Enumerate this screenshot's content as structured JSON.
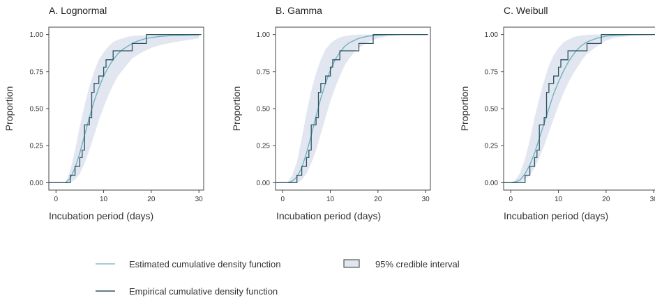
{
  "colors": {
    "band": "#e1e6f1",
    "estimated": "#6aaebb",
    "empirical": "#2b5560",
    "axis": "#444444"
  },
  "chart_data": [
    {
      "type": "line",
      "title": "A. Lognormal",
      "xlabel": "Incubation period (days)",
      "ylabel": "Proportion",
      "xlim": [
        -1.5,
        31
      ],
      "ylim": [
        -0.05,
        1.05
      ],
      "xticks": [
        0,
        10,
        20,
        30
      ],
      "yticks": [
        "0.00",
        "0.25",
        "0.50",
        "0.75",
        "1.00"
      ],
      "grid": false,
      "series": [
        {
          "name": "Estimated cumulative density function",
          "style": "line",
          "x": [
            -1.5,
            2,
            3,
            4,
            5,
            6,
            7,
            8,
            9,
            10,
            11,
            12,
            13,
            14,
            15,
            16,
            17,
            18,
            19,
            20,
            22,
            25,
            28,
            30
          ],
          "y": [
            0.0,
            0.0,
            0.03,
            0.1,
            0.2,
            0.32,
            0.44,
            0.55,
            0.64,
            0.72,
            0.78,
            0.83,
            0.87,
            0.9,
            0.92,
            0.94,
            0.955,
            0.965,
            0.975,
            0.98,
            0.988,
            0.994,
            0.997,
            0.998
          ]
        },
        {
          "name": "Empirical cumulative density function",
          "style": "step",
          "x": [
            -1.5,
            3,
            4,
            5,
            5.5,
            6,
            7,
            7.5,
            8,
            9,
            10,
            10.5,
            11,
            12,
            14,
            16,
            19,
            30.5
          ],
          "y": [
            0.0,
            0.05,
            0.11,
            0.17,
            0.22,
            0.39,
            0.44,
            0.61,
            0.67,
            0.72,
            0.78,
            0.83,
            0.83,
            0.89,
            0.89,
            0.94,
            1.0,
            1.0
          ]
        },
        {
          "name": "95% credible interval",
          "style": "band",
          "x": [
            2,
            3,
            4,
            5,
            6,
            7,
            8,
            9,
            10,
            11,
            12,
            13,
            14,
            15,
            16,
            18,
            20,
            22,
            25,
            28,
            30
          ],
          "lower": [
            0.0,
            0.0,
            0.02,
            0.06,
            0.13,
            0.22,
            0.32,
            0.42,
            0.51,
            0.59,
            0.66,
            0.72,
            0.76,
            0.8,
            0.84,
            0.88,
            0.91,
            0.93,
            0.95,
            0.965,
            0.975
          ],
          "upper": [
            0.0,
            0.08,
            0.22,
            0.38,
            0.52,
            0.65,
            0.75,
            0.83,
            0.88,
            0.92,
            0.95,
            0.965,
            0.975,
            0.985,
            0.99,
            0.995,
            0.998,
            1.0,
            1.0,
            1.0,
            1.0
          ]
        }
      ]
    },
    {
      "type": "line",
      "title": "B. Gamma",
      "xlabel": "Incubation period (days)",
      "ylabel": "Proportion",
      "xlim": [
        -1.5,
        31
      ],
      "ylim": [
        -0.05,
        1.05
      ],
      "xticks": [
        0,
        10,
        20,
        30
      ],
      "yticks": [
        "0.00",
        "0.25",
        "0.50",
        "0.75",
        "1.00"
      ],
      "grid": false,
      "series": [
        {
          "name": "Estimated cumulative density function",
          "style": "line",
          "x": [
            -1.5,
            1,
            2,
            3,
            4,
            5,
            6,
            7,
            8,
            9,
            10,
            11,
            12,
            13,
            14,
            15,
            16,
            18,
            20,
            22,
            25,
            30
          ],
          "y": [
            0.0,
            0.0,
            0.01,
            0.04,
            0.1,
            0.2,
            0.32,
            0.45,
            0.57,
            0.67,
            0.76,
            0.83,
            0.88,
            0.92,
            0.945,
            0.96,
            0.975,
            0.99,
            0.995,
            0.998,
            1.0,
            1.0
          ]
        },
        {
          "name": "Empirical cumulative density function",
          "style": "step",
          "x": [
            -1.5,
            3,
            4,
            5,
            5.5,
            6,
            7,
            7.5,
            8,
            9,
            10,
            10.5,
            11,
            12,
            14,
            16,
            19,
            30.5
          ],
          "y": [
            0.0,
            0.05,
            0.11,
            0.17,
            0.22,
            0.39,
            0.44,
            0.61,
            0.67,
            0.72,
            0.78,
            0.83,
            0.83,
            0.89,
            0.89,
            0.94,
            1.0,
            1.0
          ]
        },
        {
          "name": "95% credible interval",
          "style": "band",
          "x": [
            1,
            2,
            3,
            4,
            5,
            6,
            7,
            8,
            9,
            10,
            11,
            12,
            13,
            14,
            15,
            16,
            18,
            20,
            22,
            25,
            30
          ],
          "lower": [
            0.0,
            0.0,
            0.0,
            0.02,
            0.06,
            0.13,
            0.22,
            0.33,
            0.44,
            0.55,
            0.64,
            0.72,
            0.79,
            0.84,
            0.88,
            0.91,
            0.95,
            0.975,
            0.99,
            0.997,
            1.0
          ],
          "upper": [
            0.0,
            0.05,
            0.14,
            0.3,
            0.47,
            0.62,
            0.74,
            0.83,
            0.9,
            0.94,
            0.965,
            0.98,
            0.99,
            0.995,
            0.998,
            1.0,
            1.0,
            1.0,
            1.0,
            1.0,
            1.0
          ]
        }
      ]
    },
    {
      "type": "line",
      "title": "C. Weibull",
      "xlabel": "Incubation period (days)",
      "ylabel": "Proportion",
      "xlim": [
        -1.5,
        31
      ],
      "ylim": [
        -0.05,
        1.05
      ],
      "xticks": [
        0,
        10,
        20,
        30
      ],
      "yticks": [
        "0.00",
        "0.25",
        "0.50",
        "0.75",
        "1.00"
      ],
      "grid": false,
      "series": [
        {
          "name": "Estimated cumulative density function",
          "style": "line",
          "x": [
            -1.5,
            0,
            1,
            2,
            3,
            4,
            5,
            6,
            7,
            8,
            9,
            10,
            11,
            12,
            13,
            14,
            15,
            16,
            18,
            20,
            22,
            25,
            30
          ],
          "y": [
            0.0,
            0.0,
            0.005,
            0.02,
            0.06,
            0.12,
            0.2,
            0.3,
            0.4,
            0.5,
            0.6,
            0.68,
            0.75,
            0.81,
            0.86,
            0.9,
            0.93,
            0.95,
            0.975,
            0.99,
            0.995,
            0.999,
            1.0
          ]
        },
        {
          "name": "Empirical cumulative density function",
          "style": "step",
          "x": [
            -1.5,
            3,
            4,
            5,
            5.5,
            6,
            7,
            7.5,
            8,
            9,
            10,
            10.5,
            11,
            12,
            14,
            16,
            19,
            30.5
          ],
          "y": [
            0.0,
            0.05,
            0.11,
            0.17,
            0.22,
            0.39,
            0.44,
            0.61,
            0.67,
            0.72,
            0.78,
            0.83,
            0.83,
            0.89,
            0.89,
            0.94,
            1.0,
            1.0
          ]
        },
        {
          "name": "95% credible interval",
          "style": "band",
          "x": [
            0,
            1,
            2,
            3,
            4,
            5,
            6,
            7,
            8,
            9,
            10,
            11,
            12,
            13,
            14,
            15,
            16,
            18,
            20,
            22,
            25,
            30
          ],
          "lower": [
            0.0,
            0.0,
            0.0,
            0.02,
            0.05,
            0.1,
            0.17,
            0.25,
            0.34,
            0.43,
            0.52,
            0.6,
            0.67,
            0.73,
            0.78,
            0.83,
            0.87,
            0.92,
            0.96,
            0.98,
            0.99,
            1.0
          ],
          "upper": [
            0.0,
            0.02,
            0.07,
            0.16,
            0.29,
            0.44,
            0.57,
            0.69,
            0.79,
            0.86,
            0.91,
            0.945,
            0.965,
            0.98,
            0.99,
            0.995,
            0.998,
            1.0,
            1.0,
            1.0,
            1.0,
            1.0
          ]
        }
      ]
    }
  ],
  "legend": {
    "items": [
      {
        "label": "Estimated cumulative density function",
        "kind": "line",
        "color": "#6aaebb"
      },
      {
        "label": "Empirical cumulative density function",
        "kind": "line",
        "color": "#2b5560"
      },
      {
        "label": "95% credible interval",
        "kind": "box",
        "color": "#e1e6f1"
      }
    ]
  }
}
